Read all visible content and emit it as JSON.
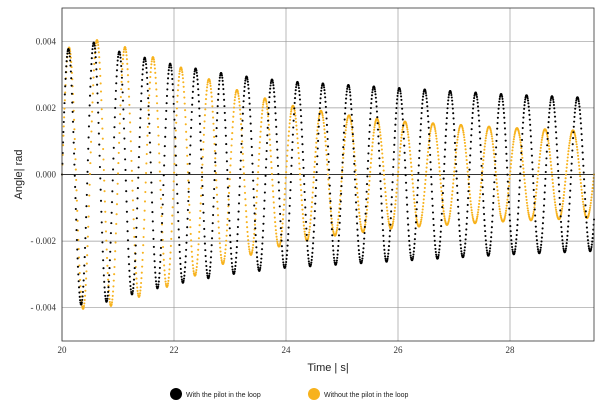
{
  "chart_data": {
    "type": "scatter",
    "xlabel": "Time | s|",
    "ylabel": "Angle| rad",
    "xlim": [
      20,
      29.5
    ],
    "ylim": [
      -0.005,
      0.005
    ],
    "x_ticks": [
      20,
      22,
      24,
      26,
      28
    ],
    "x_tick_labels": [
      "20",
      "22",
      "24",
      "26",
      "28"
    ],
    "y_ticks": [
      0.004,
      0.002,
      0.0,
      -0.002,
      -0.004
    ],
    "y_tick_labels": [
      "0.004",
      "0.002",
      "0.000",
      "- 0.002",
      "- 0.004"
    ],
    "grid": true,
    "legend_position": "bottom",
    "series": [
      {
        "name": "With the pilot in the loop",
        "color": "#000000",
        "model": {
          "peak_time": [
            20.0,
            20.5,
            21.0,
            22.0,
            23.0,
            24.0,
            25.0,
            26.0,
            27.0,
            28.0,
            29.5
          ],
          "peak_amplitude": [
            0.0037,
            0.004,
            0.0037,
            0.0033,
            0.003,
            0.0028,
            0.0027,
            0.0026,
            0.0025,
            0.0024,
            0.0023
          ],
          "frequency_hz": 2.2,
          "offset": 0.0,
          "phase": 0.0
        }
      },
      {
        "name": "Without the pilot in the loop",
        "color": "#f7b21d",
        "model": {
          "peak_time": [
            20.0,
            20.45,
            21.0,
            22.0,
            23.0,
            24.0,
            25.0,
            26.0,
            27.0,
            28.0,
            29.5
          ],
          "peak_amplitude": [
            0.0037,
            0.0041,
            0.0039,
            0.0033,
            0.0026,
            0.0021,
            0.0018,
            0.0016,
            0.0015,
            0.0014,
            0.0013
          ],
          "frequency_hz": 2.0,
          "offset": 0.0,
          "phase": 0.0
        }
      }
    ]
  }
}
